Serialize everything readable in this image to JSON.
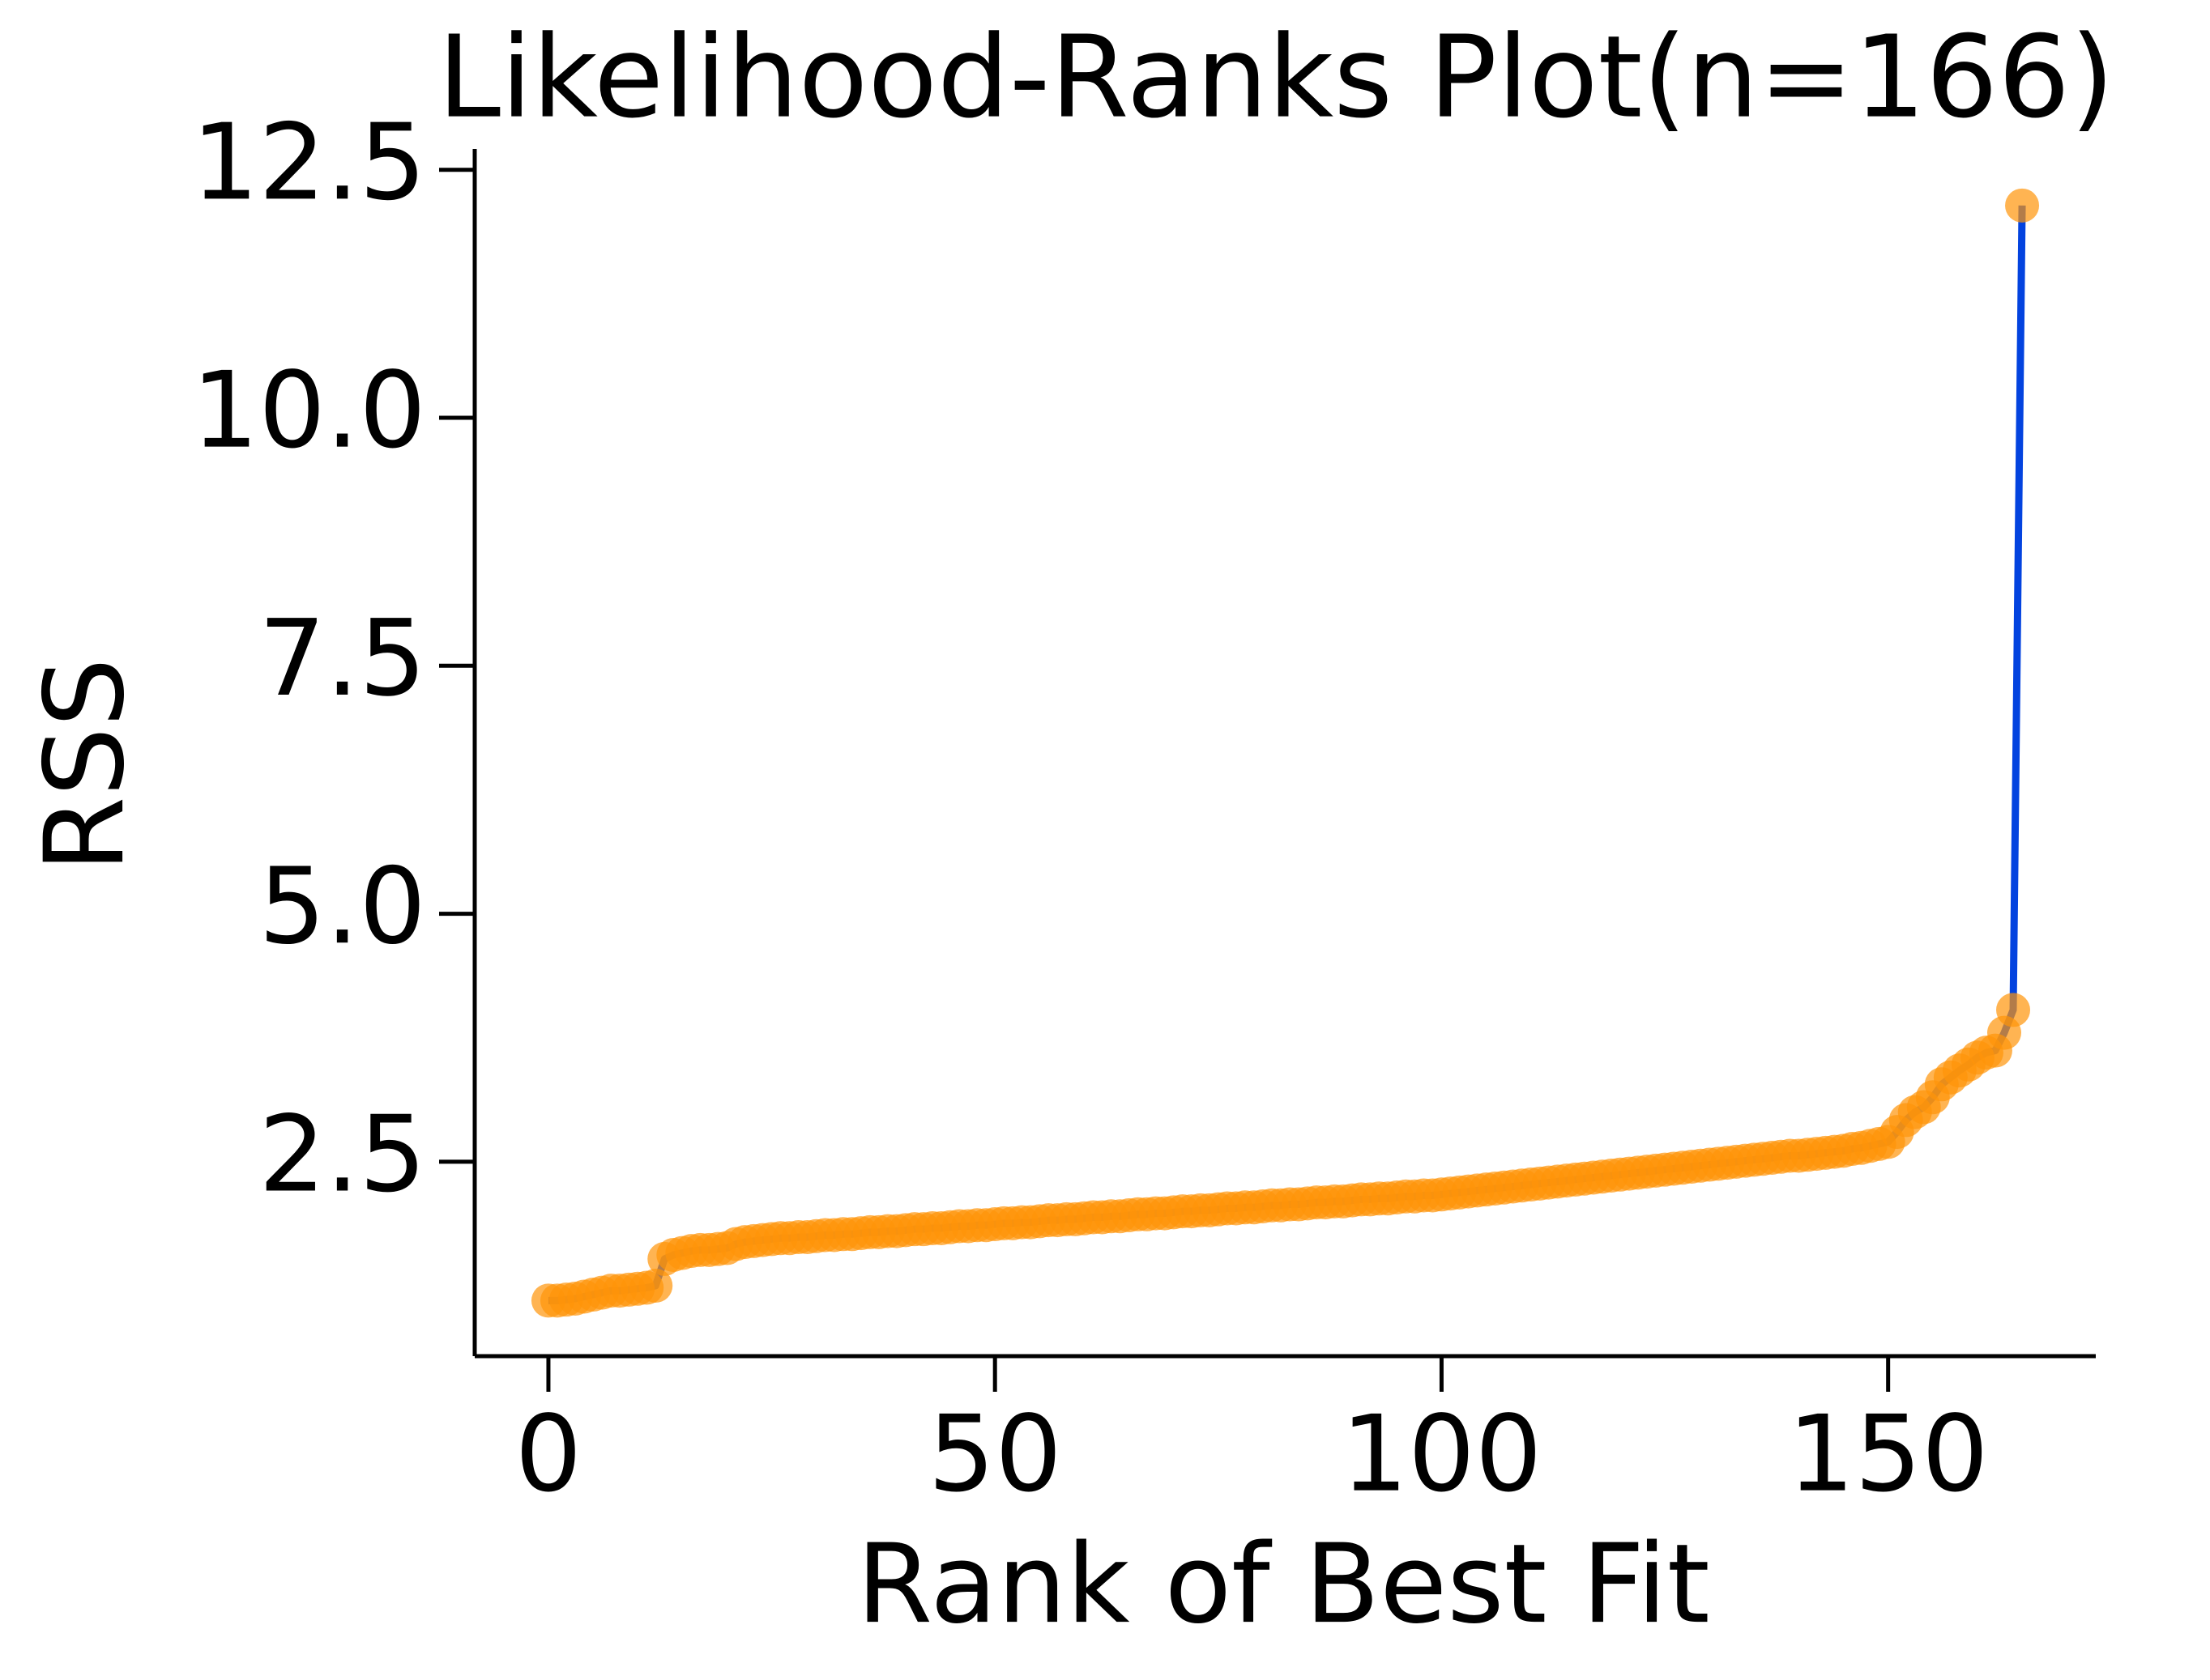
{
  "chart_data": {
    "type": "line",
    "title": "Likelihood-Ranks Plot(n=166)",
    "x_label": "Rank of Best Fit",
    "y_label": "RSS",
    "color": "#0343df",
    "marker_color": "#ff9408",
    "x": [
      0,
      1,
      2,
      3,
      4,
      5,
      6,
      7,
      8,
      9,
      10,
      11,
      12,
      13,
      14,
      15,
      16,
      17,
      18,
      19,
      20,
      21,
      22,
      23,
      24,
      25,
      26,
      27,
      28,
      29,
      30,
      31,
      32,
      33,
      34,
      35,
      36,
      37,
      38,
      39,
      40,
      41,
      42,
      43,
      44,
      45,
      46,
      47,
      48,
      49,
      50,
      51,
      52,
      53,
      54,
      55,
      56,
      57,
      58,
      59,
      60,
      61,
      62,
      63,
      64,
      65,
      66,
      67,
      68,
      69,
      70,
      71,
      72,
      73,
      74,
      75,
      76,
      77,
      78,
      79,
      80,
      81,
      82,
      83,
      84,
      85,
      86,
      87,
      88,
      89,
      90,
      91,
      92,
      93,
      94,
      95,
      96,
      97,
      98,
      99,
      100,
      101,
      102,
      103,
      104,
      105,
      106,
      107,
      108,
      109,
      110,
      111,
      112,
      113,
      114,
      115,
      116,
      117,
      118,
      119,
      120,
      121,
      122,
      123,
      124,
      125,
      126,
      127,
      128,
      129,
      130,
      131,
      132,
      133,
      134,
      135,
      136,
      137,
      138,
      139,
      140,
      141,
      142,
      143,
      144,
      145,
      146,
      147,
      148,
      149,
      150,
      151,
      152,
      153,
      154,
      155,
      156,
      157,
      158,
      159,
      160,
      161,
      162,
      163,
      164,
      165
    ],
    "values": [
      1.1,
      1.1,
      1.11,
      1.12,
      1.14,
      1.16,
      1.18,
      1.2,
      1.2,
      1.21,
      1.22,
      1.23,
      1.25,
      1.52,
      1.56,
      1.58,
      1.6,
      1.61,
      1.61,
      1.62,
      1.63,
      1.67,
      1.69,
      1.7,
      1.71,
      1.72,
      1.73,
      1.73,
      1.74,
      1.74,
      1.75,
      1.76,
      1.76,
      1.77,
      1.77,
      1.78,
      1.79,
      1.79,
      1.8,
      1.8,
      1.81,
      1.82,
      1.82,
      1.83,
      1.83,
      1.84,
      1.85,
      1.85,
      1.86,
      1.86,
      1.87,
      1.88,
      1.88,
      1.89,
      1.89,
      1.9,
      1.91,
      1.91,
      1.92,
      1.92,
      1.93,
      1.94,
      1.94,
      1.95,
      1.95,
      1.96,
      1.97,
      1.97,
      1.98,
      1.98,
      1.99,
      2.0,
      2.0,
      2.01,
      2.01,
      2.02,
      2.03,
      2.03,
      2.04,
      2.04,
      2.05,
      2.06,
      2.06,
      2.07,
      2.07,
      2.08,
      2.09,
      2.09,
      2.1,
      2.1,
      2.11,
      2.12,
      2.12,
      2.13,
      2.13,
      2.14,
      2.15,
      2.15,
      2.16,
      2.16,
      2.17,
      2.18,
      2.19,
      2.2,
      2.21,
      2.22,
      2.23,
      2.24,
      2.25,
      2.26,
      2.27,
      2.28,
      2.29,
      2.3,
      2.31,
      2.32,
      2.33,
      2.34,
      2.35,
      2.36,
      2.37,
      2.38,
      2.39,
      2.4,
      2.41,
      2.42,
      2.43,
      2.44,
      2.45,
      2.46,
      2.47,
      2.48,
      2.49,
      2.5,
      2.51,
      2.52,
      2.53,
      2.54,
      2.55,
      2.56,
      2.56,
      2.57,
      2.58,
      2.59,
      2.6,
      2.61,
      2.63,
      2.64,
      2.66,
      2.68,
      2.7,
      2.8,
      2.92,
      3.0,
      3.05,
      3.15,
      3.28,
      3.35,
      3.42,
      3.48,
      3.55,
      3.6,
      3.62,
      3.8,
      4.03,
      12.14
    ],
    "xlim": [
      -8.25,
      173.25
    ],
    "xticks": [
      0,
      50,
      100,
      150
    ],
    "ylim": [
      0.54,
      12.71
    ],
    "yticks": [
      {
        "value": 2.5,
        "label": "2.5"
      },
      {
        "value": 5,
        "label": "5.0"
      },
      {
        "value": 7.5,
        "label": "7.5"
      },
      {
        "value": 10,
        "label": "10.0"
      },
      {
        "value": 12.5,
        "label": "12.5"
      }
    ]
  }
}
